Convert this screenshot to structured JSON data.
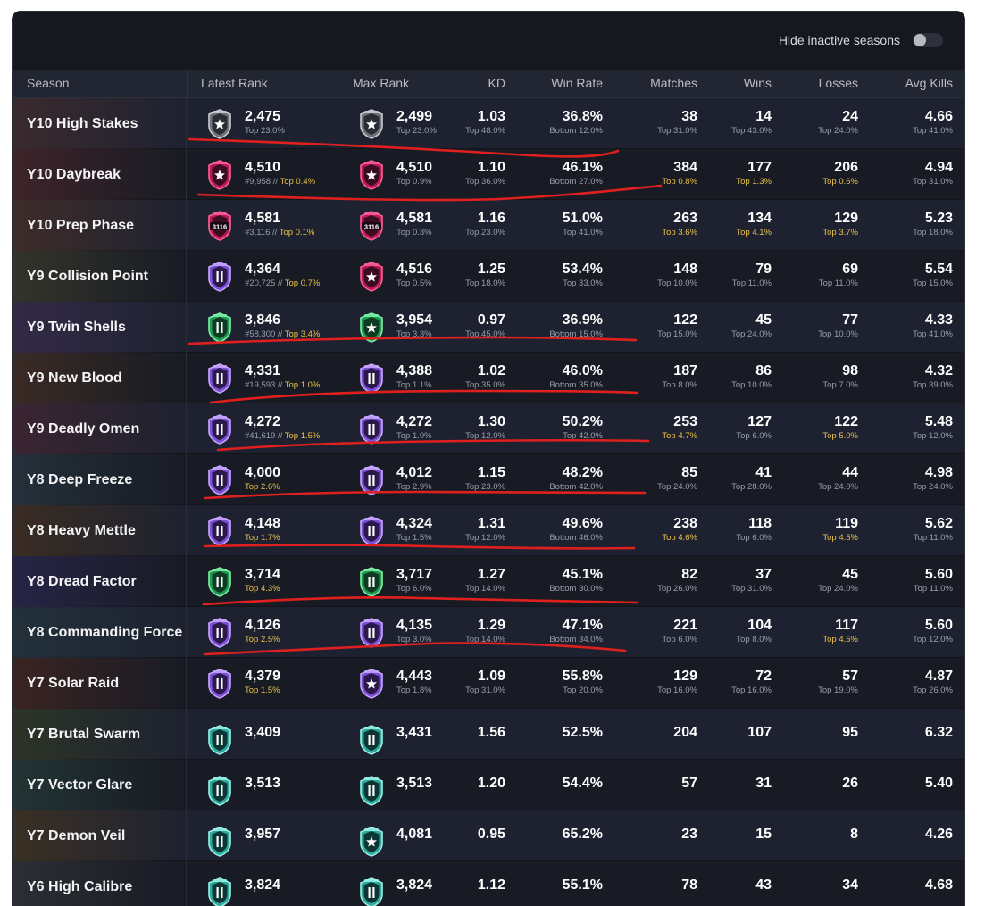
{
  "toolbar": {
    "hide_inactive_label": "Hide inactive seasons",
    "hide_inactive_on": false
  },
  "columns": {
    "season": "Season",
    "latest_rank": "Latest Rank",
    "max_rank": "Max Rank",
    "kd": "KD",
    "win_rate": "Win Rate",
    "matches": "Matches",
    "wins": "Wins",
    "losses": "Losses",
    "avg_kills": "Avg Kills"
  },
  "colors": {
    "highlight": "#e8c24a",
    "copper_silver": "#9a9ea6",
    "champion": "#e0357a",
    "diamond": "#a77bf0",
    "emerald": "#3fcf7a",
    "platinum": "#4fd0c4",
    "annotation": "#e0201e"
  },
  "rows": [
    {
      "season": "Y10 High Stakes",
      "tint": "#3a2a2e",
      "latest": {
        "badge": "silver",
        "value": "2,475",
        "sub_rank": "",
        "sub_top": "Top 23.0%",
        "top_hl": false
      },
      "max": {
        "badge": "silver",
        "value": "2,499",
        "sub_top": "Top 23.0%",
        "top_hl": false
      },
      "kd": {
        "v": "1.03",
        "s": "Top 48.0%"
      },
      "wr": {
        "v": "36.8%",
        "s": "Bottom 12.0%"
      },
      "matches": {
        "v": "38",
        "s": "Top 31.0%",
        "hl": false
      },
      "wins": {
        "v": "14",
        "s": "Top 43.0%",
        "hl": false
      },
      "losses": {
        "v": "24",
        "s": "Top 24.0%",
        "hl": false
      },
      "avgk": {
        "v": "4.66",
        "s": "Top 41.0%"
      }
    },
    {
      "season": "Y10 Daybreak",
      "tint": "#3e2429",
      "latest": {
        "badge": "champion",
        "value": "4,510",
        "sub_rank": "#9,958",
        "sub_top": "Top 0.4%",
        "top_hl": true
      },
      "max": {
        "badge": "champion",
        "value": "4,510",
        "sub_top": "Top 0.9%",
        "top_hl": true
      },
      "kd": {
        "v": "1.10",
        "s": "Top 36.0%"
      },
      "wr": {
        "v": "46.1%",
        "s": "Bottom 27.0%"
      },
      "matches": {
        "v": "384",
        "s": "Top 0.8%",
        "hl": true
      },
      "wins": {
        "v": "177",
        "s": "Top 1.3%",
        "hl": true
      },
      "losses": {
        "v": "206",
        "s": "Top 0.6%",
        "hl": true
      },
      "avgk": {
        "v": "4.94",
        "s": "Top 31.0%"
      }
    },
    {
      "season": "Y10 Prep Phase",
      "tint": "#3e2c2a",
      "latest": {
        "badge": "champion-num",
        "value": "4,581",
        "sub_rank": "#3,116",
        "sub_top": "Top 0.1%",
        "top_hl": true,
        "num": "3116"
      },
      "max": {
        "badge": "champion-num",
        "value": "4,581",
        "sub_top": "Top 0.3%",
        "top_hl": true,
        "num": "3116"
      },
      "kd": {
        "v": "1.16",
        "s": "Top 23.0%"
      },
      "wr": {
        "v": "51.0%",
        "s": "Top 41.0%"
      },
      "matches": {
        "v": "263",
        "s": "Top 3.6%",
        "hl": true
      },
      "wins": {
        "v": "134",
        "s": "Top 4.1%",
        "hl": true
      },
      "losses": {
        "v": "129",
        "s": "Top 3.7%",
        "hl": true
      },
      "avgk": {
        "v": "5.23",
        "s": "Top 18.0%"
      }
    },
    {
      "season": "Y9 Collision Point",
      "tint": "#33342a",
      "latest": {
        "badge": "diamond",
        "value": "4,364",
        "sub_rank": "#20,725",
        "sub_top": "Top 0.7%",
        "top_hl": true
      },
      "max": {
        "badge": "champion",
        "value": "4,516",
        "sub_top": "Top 0.5%",
        "top_hl": true
      },
      "kd": {
        "v": "1.25",
        "s": "Top 18.0%"
      },
      "wr": {
        "v": "53.4%",
        "s": "Top 33.0%"
      },
      "matches": {
        "v": "148",
        "s": "Top 10.0%",
        "hl": false
      },
      "wins": {
        "v": "79",
        "s": "Top 11.0%",
        "hl": false
      },
      "losses": {
        "v": "69",
        "s": "Top 11.0%",
        "hl": false
      },
      "avgk": {
        "v": "5.54",
        "s": "Top 15.0%"
      }
    },
    {
      "season": "Y9 Twin Shells",
      "tint": "#332a46",
      "latest": {
        "badge": "emerald",
        "value": "3,846",
        "sub_rank": "#58,300",
        "sub_top": "Top 3.4%",
        "top_hl": true
      },
      "max": {
        "badge": "emerald-star",
        "value": "3,954",
        "sub_top": "Top 3.3%",
        "top_hl": true
      },
      "kd": {
        "v": "0.97",
        "s": "Top 45.0%"
      },
      "wr": {
        "v": "36.9%",
        "s": "Bottom 15.0%"
      },
      "matches": {
        "v": "122",
        "s": "Top 15.0%",
        "hl": false
      },
      "wins": {
        "v": "45",
        "s": "Top 24.0%",
        "hl": false
      },
      "losses": {
        "v": "77",
        "s": "Top 10.0%",
        "hl": false
      },
      "avgk": {
        "v": "4.33",
        "s": "Top 41.0%"
      }
    },
    {
      "season": "Y9 New Blood",
      "tint": "#3a2a24",
      "latest": {
        "badge": "diamond",
        "value": "4,331",
        "sub_rank": "#19,593",
        "sub_top": "Top 1.0%",
        "top_hl": true
      },
      "max": {
        "badge": "diamond",
        "value": "4,388",
        "sub_top": "Top 1.1%",
        "top_hl": true
      },
      "kd": {
        "v": "1.02",
        "s": "Top 35.0%"
      },
      "wr": {
        "v": "46.0%",
        "s": "Bottom 35.0%"
      },
      "matches": {
        "v": "187",
        "s": "Top 8.0%",
        "hl": false
      },
      "wins": {
        "v": "86",
        "s": "Top 10.0%",
        "hl": false
      },
      "losses": {
        "v": "98",
        "s": "Top 7.0%",
        "hl": false
      },
      "avgk": {
        "v": "4.32",
        "s": "Top 39.0%"
      }
    },
    {
      "season": "Y9 Deadly Omen",
      "tint": "#3b2431",
      "latest": {
        "badge": "diamond",
        "value": "4,272",
        "sub_rank": "#41,619",
        "sub_top": "Top 1.5%",
        "top_hl": true
      },
      "max": {
        "badge": "diamond",
        "value": "4,272",
        "sub_top": "Top 1.0%",
        "top_hl": true
      },
      "kd": {
        "v": "1.30",
        "s": "Top 12.0%"
      },
      "wr": {
        "v": "50.2%",
        "s": "Top 42.0%"
      },
      "matches": {
        "v": "253",
        "s": "Top 4.7%",
        "hl": true
      },
      "wins": {
        "v": "127",
        "s": "Top 6.0%",
        "hl": false
      },
      "losses": {
        "v": "122",
        "s": "Top 5.0%",
        "hl": true
      },
      "avgk": {
        "v": "5.48",
        "s": "Top 12.0%"
      }
    },
    {
      "season": "Y8 Deep Freeze",
      "tint": "#24303a",
      "latest": {
        "badge": "diamond",
        "value": "4,000",
        "sub_rank": "",
        "sub_top": "Top 2.6%",
        "top_hl": true
      },
      "max": {
        "badge": "diamond",
        "value": "4,012",
        "sub_top": "Top 2.9%",
        "top_hl": true
      },
      "kd": {
        "v": "1.15",
        "s": "Top 23.0%"
      },
      "wr": {
        "v": "48.2%",
        "s": "Bottom 42.0%"
      },
      "matches": {
        "v": "85",
        "s": "Top 24.0%",
        "hl": false
      },
      "wins": {
        "v": "41",
        "s": "Top 28.0%",
        "hl": false
      },
      "losses": {
        "v": "44",
        "s": "Top 24.0%",
        "hl": false
      },
      "avgk": {
        "v": "4.98",
        "s": "Top 24.0%"
      }
    },
    {
      "season": "Y8 Heavy Mettle",
      "tint": "#3a2c22",
      "latest": {
        "badge": "diamond",
        "value": "4,148",
        "sub_rank": "",
        "sub_top": "Top 1.7%",
        "top_hl": true
      },
      "max": {
        "badge": "diamond",
        "value": "4,324",
        "sub_top": "Top 1.5%",
        "top_hl": true
      },
      "kd": {
        "v": "1.31",
        "s": "Top 12.0%"
      },
      "wr": {
        "v": "49.6%",
        "s": "Bottom 46.0%"
      },
      "matches": {
        "v": "238",
        "s": "Top 4.6%",
        "hl": true
      },
      "wins": {
        "v": "118",
        "s": "Top 6.0%",
        "hl": false
      },
      "losses": {
        "v": "119",
        "s": "Top 4.5%",
        "hl": true
      },
      "avgk": {
        "v": "5.62",
        "s": "Top 11.0%"
      }
    },
    {
      "season": "Y8 Dread Factor",
      "tint": "#272446",
      "latest": {
        "badge": "emerald",
        "value": "3,714",
        "sub_rank": "",
        "sub_top": "Top 4.3%",
        "top_hl": true
      },
      "max": {
        "badge": "emerald",
        "value": "3,717",
        "sub_top": "Top 6.0%",
        "top_hl": false
      },
      "kd": {
        "v": "1.27",
        "s": "Top 14.0%"
      },
      "wr": {
        "v": "45.1%",
        "s": "Bottom 30.0%"
      },
      "matches": {
        "v": "82",
        "s": "Top 26.0%",
        "hl": false
      },
      "wins": {
        "v": "37",
        "s": "Top 31.0%",
        "hl": false
      },
      "losses": {
        "v": "45",
        "s": "Top 24.0%",
        "hl": false
      },
      "avgk": {
        "v": "5.60",
        "s": "Top 11.0%"
      }
    },
    {
      "season": "Y8 Commanding Force",
      "tint": "#22303a",
      "latest": {
        "badge": "diamond",
        "value": "4,126",
        "sub_rank": "",
        "sub_top": "Top 2.5%",
        "top_hl": true
      },
      "max": {
        "badge": "diamond",
        "value": "4,135",
        "sub_top": "Top 3.0%",
        "top_hl": true
      },
      "kd": {
        "v": "1.29",
        "s": "Top 14.0%"
      },
      "wr": {
        "v": "47.1%",
        "s": "Bottom 34.0%"
      },
      "matches": {
        "v": "221",
        "s": "Top 6.0%",
        "hl": false
      },
      "wins": {
        "v": "104",
        "s": "Top 8.0%",
        "hl": false
      },
      "losses": {
        "v": "117",
        "s": "Top 4.5%",
        "hl": true
      },
      "avgk": {
        "v": "5.60",
        "s": "Top 12.0%"
      }
    },
    {
      "season": "Y7 Solar Raid",
      "tint": "#3a2422",
      "latest": {
        "badge": "diamond",
        "value": "4,379",
        "sub_rank": "",
        "sub_top": "Top 1.5%",
        "top_hl": true
      },
      "max": {
        "badge": "diamond-star",
        "value": "4,443",
        "sub_top": "Top 1.8%",
        "top_hl": true
      },
      "kd": {
        "v": "1.09",
        "s": "Top 31.0%"
      },
      "wr": {
        "v": "55.8%",
        "s": "Top 20.0%"
      },
      "matches": {
        "v": "129",
        "s": "Top 16.0%",
        "hl": false
      },
      "wins": {
        "v": "72",
        "s": "Top 16.0%",
        "hl": false
      },
      "losses": {
        "v": "57",
        "s": "Top 19.0%",
        "hl": false
      },
      "avgk": {
        "v": "4.87",
        "s": "Top 26.0%"
      }
    },
    {
      "season": "Y7 Brutal Swarm",
      "tint": "#2c3426",
      "latest": {
        "badge": "platinum",
        "value": "3,409",
        "sub_rank": "",
        "sub_top": "",
        "top_hl": false
      },
      "max": {
        "badge": "platinum",
        "value": "3,431",
        "sub_top": "",
        "top_hl": false
      },
      "kd": {
        "v": "1.56",
        "s": ""
      },
      "wr": {
        "v": "52.5%",
        "s": ""
      },
      "matches": {
        "v": "204",
        "s": "",
        "hl": false
      },
      "wins": {
        "v": "107",
        "s": "",
        "hl": false
      },
      "losses": {
        "v": "95",
        "s": "",
        "hl": false
      },
      "avgk": {
        "v": "6.32",
        "s": ""
      }
    },
    {
      "season": "Y7 Vector Glare",
      "tint": "#223434",
      "latest": {
        "badge": "platinum",
        "value": "3,513",
        "sub_rank": "",
        "sub_top": "",
        "top_hl": false
      },
      "max": {
        "badge": "platinum",
        "value": "3,513",
        "sub_top": "",
        "top_hl": false
      },
      "kd": {
        "v": "1.20",
        "s": ""
      },
      "wr": {
        "v": "54.4%",
        "s": ""
      },
      "matches": {
        "v": "57",
        "s": "",
        "hl": false
      },
      "wins": {
        "v": "31",
        "s": "",
        "hl": false
      },
      "losses": {
        "v": "26",
        "s": "",
        "hl": false
      },
      "avgk": {
        "v": "5.40",
        "s": ""
      }
    },
    {
      "season": "Y7 Demon Veil",
      "tint": "#3a3024",
      "latest": {
        "badge": "platinum",
        "value": "3,957",
        "sub_rank": "",
        "sub_top": "",
        "top_hl": false
      },
      "max": {
        "badge": "platinum-star",
        "value": "4,081",
        "sub_top": "",
        "top_hl": false
      },
      "kd": {
        "v": "0.95",
        "s": ""
      },
      "wr": {
        "v": "65.2%",
        "s": ""
      },
      "matches": {
        "v": "23",
        "s": "",
        "hl": false
      },
      "wins": {
        "v": "15",
        "s": "",
        "hl": false
      },
      "losses": {
        "v": "8",
        "s": "",
        "hl": false
      },
      "avgk": {
        "v": "4.26",
        "s": ""
      }
    },
    {
      "season": "Y6 High Calibre",
      "tint": "#2c2e34",
      "latest": {
        "badge": "platinum",
        "value": "3,824",
        "sub_rank": "",
        "sub_top": "",
        "top_hl": false
      },
      "max": {
        "badge": "platinum",
        "value": "3,824",
        "sub_top": "",
        "top_hl": false
      },
      "kd": {
        "v": "1.12",
        "s": ""
      },
      "wr": {
        "v": "55.1%",
        "s": ""
      },
      "matches": {
        "v": "78",
        "s": "",
        "hl": false
      },
      "wins": {
        "v": "43",
        "s": "",
        "hl": false
      },
      "losses": {
        "v": "34",
        "s": "",
        "hl": false
      },
      "avgk": {
        "v": "4.68",
        "s": ""
      }
    }
  ]
}
